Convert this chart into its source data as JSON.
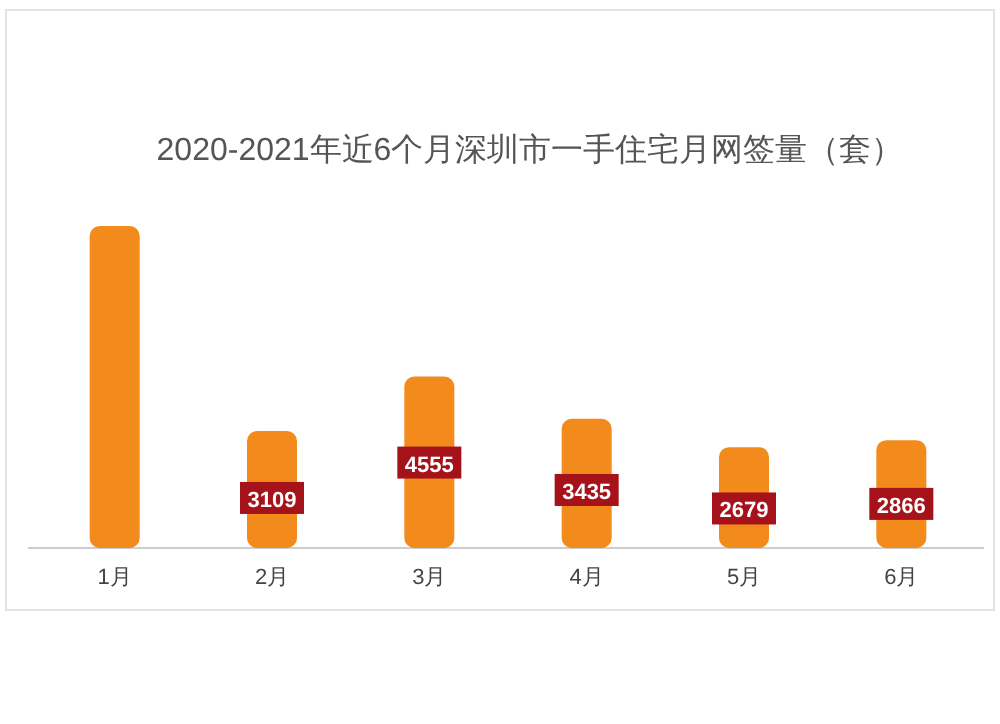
{
  "chart_data": {
    "type": "bar",
    "title": "2020-2021年近6个月深圳市一手住宅月网签量（套）",
    "categories": [
      "1月",
      "2月",
      "3月",
      "4月",
      "5月",
      "6月"
    ],
    "values": [
      8556,
      3109,
      4555,
      3435,
      2679,
      2866
    ],
    "value_labels": [
      null,
      "3109",
      "4555",
      "3435",
      "2679",
      "2866"
    ],
    "color": "#f28a1c"
  }
}
